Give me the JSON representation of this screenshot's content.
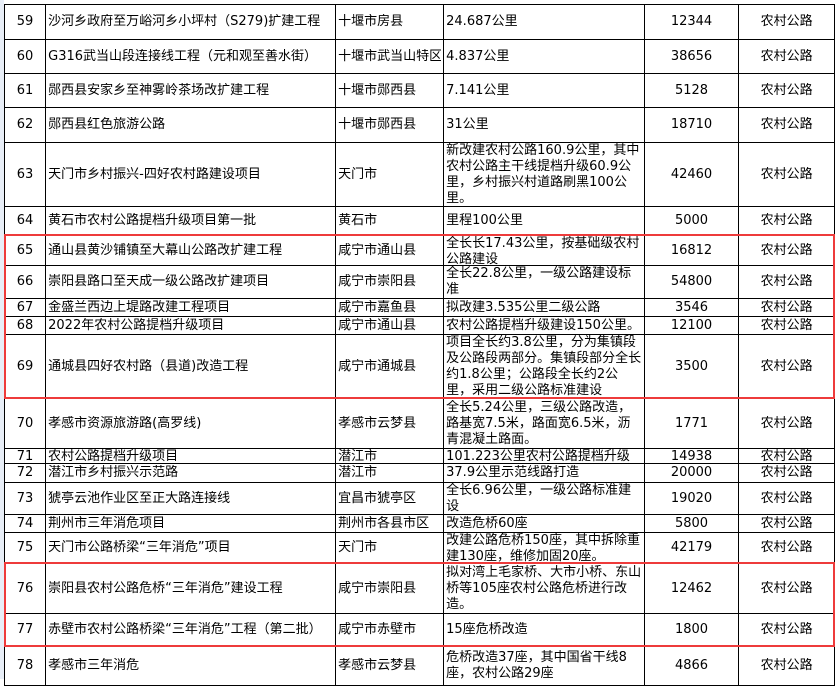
{
  "highlight_color": "#ee3b3b",
  "rows": [
    {
      "no": "59",
      "name": "沙河乡政府至万峪河乡小坪村（S279)扩建工程",
      "loc": "十堰市房县",
      "scale": "24.687公里",
      "amt": "12344",
      "type": "农村公路"
    },
    {
      "no": "60",
      "name": "G316武当山段连接线工程（元和观至善水街）",
      "loc": "十堰市武当山特区",
      "scale": "4.837公里",
      "amt": "38656",
      "type": "农村公路"
    },
    {
      "no": "61",
      "name": "郧西县安家乡至神雾岭茶场改扩建工程",
      "loc": "十堰市郧西县",
      "scale": "7.141公里",
      "amt": "5128",
      "type": "农村公路"
    },
    {
      "no": "62",
      "name": "郧西县红色旅游公路",
      "loc": "十堰市郧西县",
      "scale": "31公里",
      "amt": "18710",
      "type": "农村公路"
    },
    {
      "no": "63",
      "name": "天门市乡村振兴-四好农村路建设项目",
      "loc": "天门市",
      "scale": "新改建农村公路160.9公里，其中农村公路主干线提档升级60.9公里，乡村振兴村道路刷黑100公里。",
      "amt": "42460",
      "type": "农村公路"
    },
    {
      "no": "64",
      "name": "黄石市农村公路提档升级项目第一批",
      "loc": "黄石市",
      "scale": "里程100公里",
      "amt": "5000",
      "type": "农村公路"
    },
    {
      "no": "65",
      "name": "通山县黄沙铺镇至大幕山公路改扩建工程",
      "loc": "咸宁市通山县",
      "scale": "全长长17.43公里，按基础级农村公路建设",
      "amt": "16812",
      "type": "农村公路"
    },
    {
      "no": "66",
      "name": "崇阳县路口至天成一级公路改扩建项目",
      "loc": "咸宁市崇阳县",
      "scale": "全长22.8公里，一级公路建设标准",
      "amt": "54800",
      "type": "农村公路"
    },
    {
      "no": "67",
      "name": "金盛兰西边上堤路改建工程项目",
      "loc": "咸宁市嘉鱼县",
      "scale": "拟改建3.535公里二级公路",
      "amt": "3546",
      "type": "农村公路"
    },
    {
      "no": "68",
      "name": "2022年农村公路提档升级项目",
      "loc": "咸宁市通山县",
      "scale": "农村公路提档升级建设150公里。",
      "amt": "12100",
      "type": "农村公路"
    },
    {
      "no": "69",
      "name": "通城县四好农村路（县道)改造工程",
      "loc": "咸宁市通城县",
      "scale": "项目全长约3.8公里，分为集镇段及公路段两部分。集镇段部分全长约1.8公里；公路段全长约2公里，采用二级公路标准建设",
      "amt": "3500",
      "type": "农村公路"
    },
    {
      "no": "70",
      "name": "孝感市资源旅游路(高罗线)",
      "loc": "孝感市云梦县",
      "scale": "全长5.24公里，三级公路改造，路基宽7.5米，路面宽6.5米，沥青混凝土路面。",
      "amt": "1771",
      "type": "农村公路"
    },
    {
      "no": "71",
      "name": "农村公路提档升级项目",
      "loc": "潜江市",
      "scale": "101.223公里农村公路提档升级",
      "amt": "14938",
      "type": "农村公路"
    },
    {
      "no": "72",
      "name": "潜江市乡村振兴示范路",
      "loc": "潜江市",
      "scale": "37.9公里示范线路打造",
      "amt": "20000",
      "type": "农村公路"
    },
    {
      "no": "73",
      "name": "猇亭云池作业区至正大路连接线",
      "loc": "宜昌市猇亭区",
      "scale": "全长6.96公里，一级公路标准建设",
      "amt": "19020",
      "type": "农村公路"
    },
    {
      "no": "74",
      "name": "荆州市三年消危项目",
      "loc": "荆州市各县市区",
      "scale": "改造危桥60座",
      "amt": "5800",
      "type": "农村公路"
    },
    {
      "no": "75",
      "name": "天门市公路桥梁“三年消危”项目",
      "loc": "天门市",
      "scale": "改建公路危桥150座，其中拆除重建130座，维修加固20座。",
      "amt": "42179",
      "type": "农村公路"
    },
    {
      "no": "76",
      "name": "崇阳县农村公路危桥“三年消危”建设工程",
      "loc": "咸宁市崇阳县",
      "scale": "拟对湾上毛家桥、大市小桥、东山桥等105座农村公路危桥进行改造。",
      "amt": "12462",
      "type": "农村公路"
    },
    {
      "no": "77",
      "name": "赤壁市农村公路桥梁“三年消危”工程（第二批）",
      "loc": "咸宁市赤壁市",
      "scale": "15座危桥改造",
      "amt": "1800",
      "type": "农村公路"
    },
    {
      "no": "78",
      "name": "孝感市三年消危",
      "loc": "孝感市云梦县",
      "scale": "危桥改造37座，其中国省干线8座，农村公路29座",
      "amt": "4866",
      "type": "农村公路"
    }
  ]
}
